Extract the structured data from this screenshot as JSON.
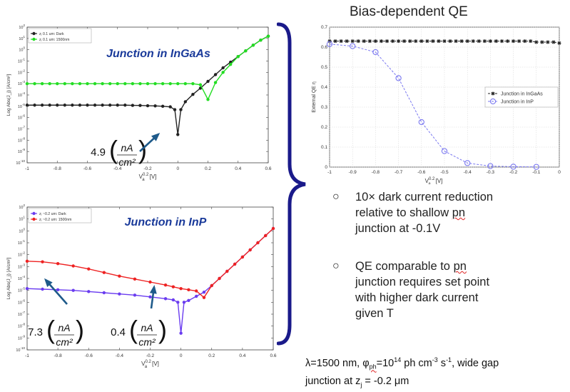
{
  "slide": {
    "title": "Bias-dependent QE",
    "bullets": [
      {
        "lines": [
          "10× dark current reduction",
          "relative to shallow pn",
          "junction at -0.1V"
        ]
      },
      {
        "lines": [
          "QE comparable to pn",
          "junction requires set point",
          "with higher dark current",
          "given T"
        ]
      }
    ],
    "footnote": {
      "line1_a": "λ=1500 nm, φ",
      "line1_sub": "ph",
      "line1_b": "=10",
      "line1_sup1": "14",
      "line1_c": " ph cm",
      "line1_sup2": "-3",
      "line1_d": " s",
      "line1_sup3": "-1",
      "line1_e": ", wide gap",
      "line2_a": "junction at z",
      "line2_sub": "j",
      "line2_b": " = -0.2 μm"
    }
  },
  "colors": {
    "dark": "#222222",
    "light_ingaas": "#22dd22",
    "light_inp": "#ee2222",
    "dark_inp": "#6a3cf0",
    "qe_inp": "#7a78f0",
    "bracket": "#1a1a8a",
    "arrow": "#1e5a8a",
    "annot_blue": "#1a3a9a"
  },
  "chart_data": [
    {
      "type": "line",
      "log_y": true,
      "annotation_title": "Junction in InGaAs",
      "xlabel_main": "V",
      "xlabel_sub": "a",
      "xlabel_sup": "0.2",
      "xlabel_unit": "[V]",
      "ylabel": "Log Abs(J_j) [A/cm²]",
      "xlim": [
        -1,
        0.6
      ],
      "ylim_exp": [
        -10,
        2
      ],
      "x_ticks": [
        "-1",
        "-0.8",
        "-0.6",
        "-0.4",
        "-0.2",
        "0",
        "0.2",
        "0.4",
        "0.6"
      ],
      "y_tick_base": "10",
      "y_tick_exps": [
        "-10",
        "-9",
        "-8",
        "-7",
        "-6",
        "-5",
        "-4",
        "-3",
        "-2",
        "-1",
        "0",
        "1",
        "2"
      ],
      "legend_position": "top-left",
      "series": [
        {
          "name": "zⱼ 0.1 um: Dark",
          "color": "#222222",
          "x": [
            -1,
            -0.95,
            -0.9,
            -0.85,
            -0.8,
            -0.75,
            -0.7,
            -0.65,
            -0.6,
            -0.55,
            -0.5,
            -0.45,
            -0.4,
            -0.35,
            -0.3,
            -0.25,
            -0.2,
            -0.15,
            -0.1,
            -0.05,
            -0.02,
            0.0,
            0.02,
            0.05,
            0.1,
            0.15,
            0.2,
            0.25,
            0.3,
            0.35,
            0.4,
            0.45,
            0.5,
            0.55,
            0.6
          ],
          "log10_y": [
            -4.9,
            -4.9,
            -4.9,
            -4.9,
            -4.9,
            -4.9,
            -4.9,
            -4.9,
            -4.9,
            -4.9,
            -4.9,
            -4.9,
            -4.9,
            -4.9,
            -4.92,
            -4.93,
            -4.95,
            -4.97,
            -5.0,
            -5.05,
            -5.3,
            -7.5,
            -5.3,
            -4.6,
            -3.95,
            -3.4,
            -2.8,
            -2.2,
            -1.6,
            -1.1,
            -0.6,
            -0.1,
            0.4,
            0.85,
            1.2
          ]
        },
        {
          "name": "zⱼ 0.1 um: 1500nm",
          "color": "#22dd22",
          "x": [
            -1,
            -0.95,
            -0.9,
            -0.85,
            -0.8,
            -0.75,
            -0.7,
            -0.65,
            -0.6,
            -0.55,
            -0.5,
            -0.45,
            -0.4,
            -0.35,
            -0.3,
            -0.25,
            -0.2,
            -0.15,
            -0.1,
            -0.05,
            0.0,
            0.05,
            0.1,
            0.15,
            0.2,
            0.25,
            0.3,
            0.35,
            0.4,
            0.45,
            0.5,
            0.55,
            0.6
          ],
          "log10_y": [
            -3.0,
            -3.0,
            -3.0,
            -3.0,
            -3.0,
            -3.0,
            -3.0,
            -3.0,
            -3.0,
            -3.0,
            -3.0,
            -3.0,
            -3.0,
            -3.0,
            -3.0,
            -3.0,
            -3.0,
            -3.0,
            -3.0,
            -3.0,
            -3.0,
            -3.0,
            -3.0,
            -3.1,
            -4.4,
            -2.9,
            -2.0,
            -1.3,
            -0.6,
            -0.1,
            0.4,
            0.85,
            1.2
          ]
        }
      ],
      "annotation_value": "4.9",
      "annotation_unit_num": "nA",
      "annotation_unit_den": "cm²"
    },
    {
      "type": "line",
      "log_y": true,
      "annotation_title": "Junction in InP",
      "xlabel_main": "V",
      "xlabel_sub": "a",
      "xlabel_sup": "0.2",
      "xlabel_unit": "[V]",
      "ylabel": "Log Abs(J_j) [A/cm²]",
      "xlim": [
        -1,
        0.6
      ],
      "ylim_exp": [
        -10,
        2
      ],
      "x_ticks": [
        "-1",
        "-0.8",
        "-0.6",
        "-0.4",
        "-0.2",
        "0",
        "0.2",
        "0.4",
        "0.6"
      ],
      "y_tick_base": "10",
      "y_tick_exps": [
        "-10",
        "-9",
        "-8",
        "-7",
        "-6",
        "-5",
        "-4",
        "-3",
        "-2",
        "-1",
        "0",
        "1",
        "2"
      ],
      "legend_position": "top-left",
      "series": [
        {
          "name": "zⱼ ~0.2 um: Dark",
          "color": "#6a3cf0",
          "x": [
            -1,
            -0.9,
            -0.8,
            -0.7,
            -0.6,
            -0.5,
            -0.4,
            -0.3,
            -0.2,
            -0.1,
            -0.05,
            -0.02,
            0.0,
            0.02,
            0.05,
            0.1,
            0.15,
            0.2,
            0.25,
            0.3,
            0.35,
            0.4,
            0.45,
            0.5,
            0.55,
            0.6
          ],
          "log10_y": [
            -4.85,
            -4.9,
            -4.95,
            -5.0,
            -5.1,
            -5.2,
            -5.3,
            -5.4,
            -5.55,
            -5.7,
            -5.8,
            -6.0,
            -8.6,
            -6.0,
            -5.85,
            -5.5,
            -5.15,
            -4.6,
            -4.0,
            -3.4,
            -2.8,
            -2.2,
            -1.6,
            -1.0,
            -0.4,
            0.2
          ]
        },
        {
          "name": "zⱼ ~0.2 um: 1500nm",
          "color": "#ee2222",
          "x": [
            -1,
            -0.9,
            -0.8,
            -0.7,
            -0.6,
            -0.5,
            -0.4,
            -0.3,
            -0.2,
            -0.1,
            -0.05,
            0.0,
            0.05,
            0.1,
            0.15,
            0.2,
            0.25,
            0.3,
            0.35,
            0.4,
            0.45,
            0.5,
            0.55,
            0.6
          ],
          "log10_y": [
            -2.55,
            -2.6,
            -2.75,
            -2.95,
            -3.2,
            -3.5,
            -3.8,
            -4.05,
            -4.3,
            -4.55,
            -4.7,
            -4.85,
            -4.95,
            -5.05,
            -5.6,
            -4.6,
            -4.0,
            -3.4,
            -2.8,
            -2.2,
            -1.6,
            -1.0,
            -0.4,
            0.2
          ]
        }
      ],
      "annotation_values": [
        {
          "value": "7.3",
          "num": "nA",
          "den": "cm²"
        },
        {
          "value": "0.4",
          "num": "nA",
          "den": "cm²"
        }
      ]
    },
    {
      "type": "line",
      "title": "",
      "xlabel_main": "V",
      "xlabel_sub": "a",
      "xlabel_sup": "0.2",
      "xlabel_unit": "[V]",
      "ylabel": "External QE η",
      "xlim": [
        -1,
        0
      ],
      "ylim": [
        0,
        0.7
      ],
      "x_ticks": [
        -1,
        -0.9,
        -0.8,
        -0.7,
        -0.6,
        -0.5,
        -0.4,
        -0.3,
        -0.2,
        -0.1,
        0
      ],
      "y_ticks": [
        0,
        0.1,
        0.2,
        0.3,
        0.4,
        0.5,
        0.6,
        0.7
      ],
      "grid": true,
      "legend_position": "right",
      "series": [
        {
          "name": "Junction in InGaAs",
          "color": "#222222",
          "marker": "star",
          "x": [
            -1,
            -0.975,
            -0.95,
            -0.925,
            -0.9,
            -0.875,
            -0.85,
            -0.825,
            -0.8,
            -0.775,
            -0.75,
            -0.725,
            -0.7,
            -0.675,
            -0.65,
            -0.625,
            -0.6,
            -0.575,
            -0.55,
            -0.525,
            -0.5,
            -0.475,
            -0.45,
            -0.425,
            -0.4,
            -0.375,
            -0.35,
            -0.325,
            -0.3,
            -0.275,
            -0.25,
            -0.225,
            -0.2,
            -0.175,
            -0.15,
            -0.125,
            -0.1,
            -0.075,
            -0.05,
            -0.025,
            0
          ],
          "y": [
            0.63,
            0.63,
            0.63,
            0.63,
            0.63,
            0.63,
            0.63,
            0.63,
            0.63,
            0.63,
            0.63,
            0.63,
            0.63,
            0.63,
            0.63,
            0.63,
            0.63,
            0.63,
            0.63,
            0.63,
            0.63,
            0.63,
            0.63,
            0.63,
            0.63,
            0.63,
            0.63,
            0.63,
            0.63,
            0.63,
            0.63,
            0.63,
            0.63,
            0.63,
            0.63,
            0.63,
            0.625,
            0.625,
            0.625,
            0.625,
            0.62
          ]
        },
        {
          "name": "Junction in InP",
          "color": "#7a78f0",
          "marker": "circle",
          "x": [
            -1,
            -0.9,
            -0.8,
            -0.7,
            -0.6,
            -0.5,
            -0.4,
            -0.3,
            -0.2,
            -0.1
          ],
          "y": [
            0.615,
            0.605,
            0.575,
            0.445,
            0.225,
            0.08,
            0.02,
            0.005,
            0.002,
            0.001
          ]
        }
      ]
    }
  ]
}
